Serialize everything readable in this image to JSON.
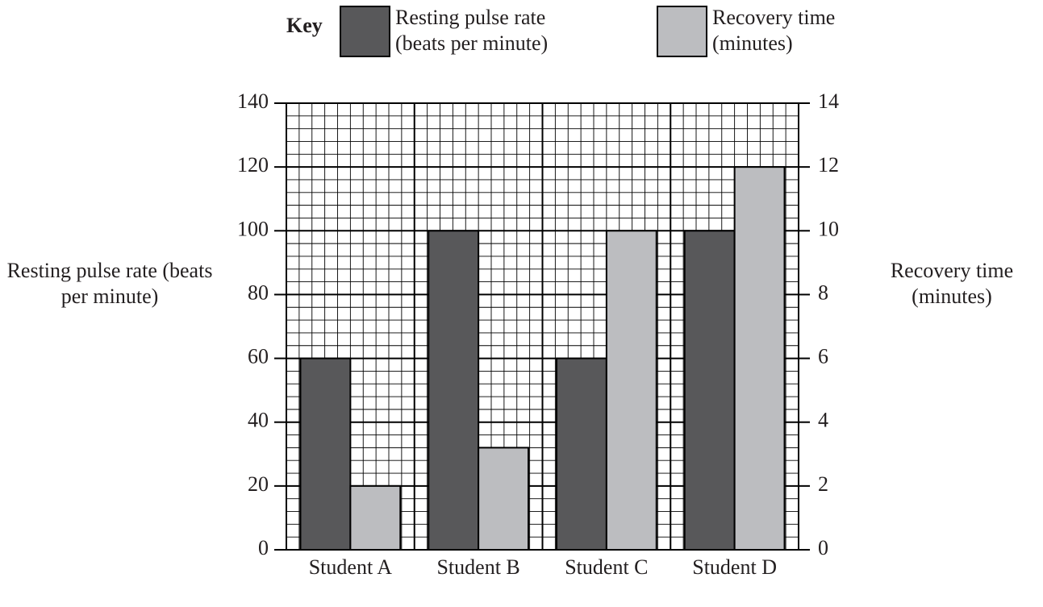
{
  "chart_data": {
    "type": "bar",
    "legend_title": "Key",
    "categories": [
      "Student A",
      "Student B",
      "Student C",
      "Student D"
    ],
    "series": [
      {
        "name": "Resting pulse rate (beats per minute)",
        "color": "#58585a",
        "values": [
          60,
          100,
          60,
          100
        ]
      },
      {
        "name": "Recovery time (minutes)",
        "color": "#bcbdc0",
        "values": [
          2,
          3.2,
          10,
          12
        ],
        "axis": "y2"
      }
    ],
    "ylabel": "Resting pulse rate (beats per minute)",
    "y2label": "Recovery time (minutes)",
    "ylim": [
      0,
      140
    ],
    "yticks": [
      0,
      20,
      40,
      60,
      80,
      100,
      120,
      140
    ],
    "y2lim": [
      0,
      14
    ],
    "y2ticks": [
      0,
      2,
      4,
      6,
      8,
      10,
      12,
      14
    ],
    "grid": true
  }
}
